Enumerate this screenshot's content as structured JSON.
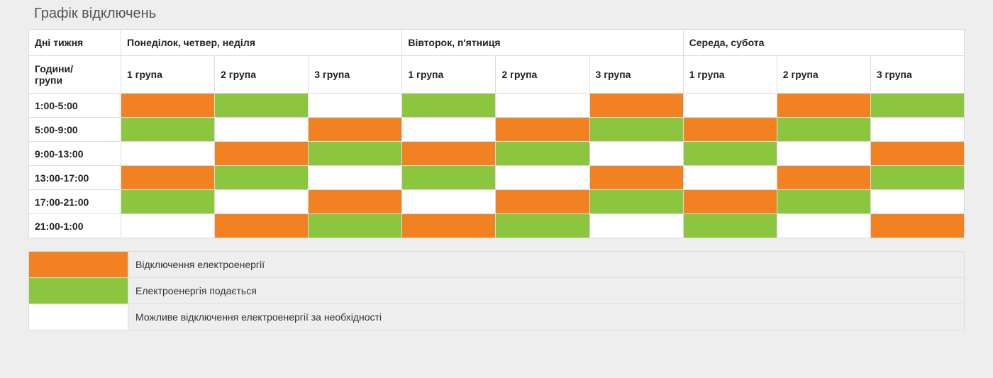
{
  "title": "Графік відключень",
  "colors": {
    "off": "#f28121",
    "on": "#8cc63e",
    "maybe": "#ffffff",
    "page_bg": "#eeeeee",
    "border": "#dddddd",
    "title_text": "#555555",
    "header_text": "#222222"
  },
  "table": {
    "header_days_label": "Дні тижня",
    "header_hours_label": "Години/\nгрупи",
    "day_groups": [
      "Понеділок, четвер, неділя",
      "Вівторок, п'ятниця",
      "Середа, субота"
    ],
    "group_labels": [
      "1 група",
      "2 група",
      "3 група"
    ],
    "time_rows": [
      "1:00-5:00",
      "5:00-9:00",
      "9:00-13:00",
      "13:00-17:00",
      "17:00-21:00",
      "21:00-1:00"
    ],
    "cells": [
      [
        "off",
        "on",
        "maybe",
        "on",
        "maybe",
        "off",
        "maybe",
        "off",
        "on"
      ],
      [
        "on",
        "maybe",
        "off",
        "maybe",
        "off",
        "on",
        "off",
        "on",
        "maybe"
      ],
      [
        "maybe",
        "off",
        "on",
        "off",
        "on",
        "maybe",
        "on",
        "maybe",
        "off"
      ],
      [
        "off",
        "on",
        "maybe",
        "on",
        "maybe",
        "off",
        "maybe",
        "off",
        "on"
      ],
      [
        "on",
        "maybe",
        "off",
        "maybe",
        "off",
        "on",
        "off",
        "on",
        "maybe"
      ],
      [
        "maybe",
        "off",
        "on",
        "off",
        "on",
        "maybe",
        "on",
        "maybe",
        "off"
      ]
    ]
  },
  "legend": [
    {
      "key": "off",
      "text": "Відключення електроенергії"
    },
    {
      "key": "on",
      "text": "Електроенергія подається"
    },
    {
      "key": "maybe",
      "text": "Можливе відключення електроенергії за необхідності"
    }
  ]
}
